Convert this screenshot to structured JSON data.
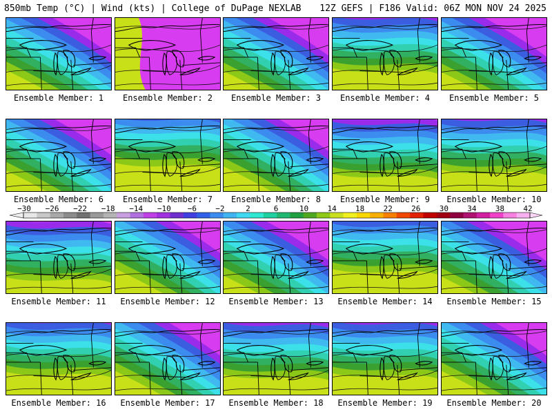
{
  "header": {
    "left": "850mb Temp (°C) | Wind (kts) | College of DuPage NEXLAB",
    "right": "12Z GEFS | F186 Valid: 06Z MON NOV 24 2025"
  },
  "panels": [
    {
      "label": "Ensemble Member: 1",
      "cold": "top-right",
      "coldness": 0.55
    },
    {
      "label": "Ensemble Member: 2",
      "cold": "right",
      "coldness": 0.35
    },
    {
      "label": "Ensemble Member: 3",
      "cold": "top-right",
      "coldness": 0.5
    },
    {
      "label": "Ensemble Member: 4",
      "cold": "top",
      "coldness": 0.55
    },
    {
      "label": "Ensemble Member: 5",
      "cold": "top-right",
      "coldness": 0.45
    },
    {
      "label": "Ensemble Member: 6",
      "cold": "top-right",
      "coldness": 0.6
    },
    {
      "label": "Ensemble Member: 7",
      "cold": "top",
      "coldness": 0.8
    },
    {
      "label": "Ensemble Member: 8",
      "cold": "top-right",
      "coldness": 0.8
    },
    {
      "label": "Ensemble Member: 9",
      "cold": "top",
      "coldness": 0.4
    },
    {
      "label": "Ensemble Member: 10",
      "cold": "top",
      "coldness": 0.55
    },
    {
      "label": "Ensemble Member: 11",
      "cold": "top",
      "coldness": 0.35
    },
    {
      "label": "Ensemble Member: 12",
      "cold": "top-right",
      "coldness": 0.8
    },
    {
      "label": "Ensemble Member: 13",
      "cold": "top-right",
      "coldness": 0.45
    },
    {
      "label": "Ensemble Member: 14",
      "cold": "top",
      "coldness": 0.65
    },
    {
      "label": "Ensemble Member: 15",
      "cold": "top-right",
      "coldness": 0.4
    },
    {
      "label": "Ensemble Member: 16",
      "cold": "top",
      "coldness": 0.6
    },
    {
      "label": "Ensemble Member: 17",
      "cold": "top-right",
      "coldness": 0.75
    },
    {
      "label": "Ensemble Member: 18",
      "cold": "top",
      "coldness": 0.5
    },
    {
      "label": "Ensemble Member: 19",
      "cold": "top",
      "coldness": 0.55
    },
    {
      "label": "Ensemble Member: 20",
      "cold": "top-right",
      "coldness": 0.75
    }
  ],
  "legend": {
    "ticks": [
      "-30",
      "-26",
      "-22",
      "-18",
      "-14",
      "-10",
      "-6",
      "-2",
      "2",
      "6",
      "10",
      "14",
      "18",
      "22",
      "26",
      "30",
      "34",
      "38",
      "42"
    ],
    "colors": [
      "#e8e8e8",
      "#c8c8c8",
      "#a8a8a8",
      "#8c8c8c",
      "#707070",
      "#9a9a9a",
      "#b4b4b4",
      "#c8a0e0",
      "#b070e0",
      "#c040e8",
      "#a030e0",
      "#7030d0",
      "#4040e0",
      "#3060e8",
      "#3c8cf0",
      "#40b4f0",
      "#40d8f0",
      "#30e8d0",
      "#20d0a0",
      "#20b870",
      "#20a040",
      "#50a820",
      "#90c818",
      "#c8e020",
      "#f0f020",
      "#f8d800",
      "#f8b000",
      "#f88000",
      "#f04800",
      "#e02000",
      "#c00000",
      "#a00010",
      "#900040",
      "#b01070",
      "#d020a0",
      "#f040c8",
      "#f880e0",
      "#f8b0f0"
    ]
  },
  "palette": {
    "violet": "#9b2bea",
    "magenta": "#d83cf0",
    "blue": "#3b5ee0",
    "lightblue": "#3c8cf0",
    "sky": "#40b8f0",
    "cyan": "#3ce0e8",
    "teal": "#30d0b0",
    "green1": "#30b060",
    "green2": "#3aa030",
    "yellowgreen": "#8cc818",
    "lime": "#c8e018"
  }
}
